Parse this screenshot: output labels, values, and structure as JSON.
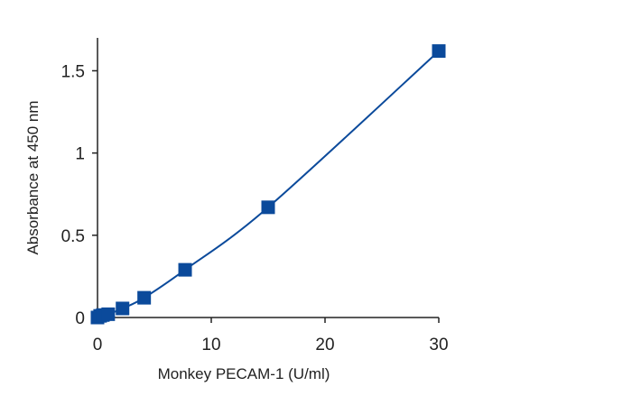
{
  "chart_data": {
    "type": "scatter",
    "title": "",
    "xlabel": "Monkey PECAM-1 (U/ml)",
    "ylabel": "Absorbance at 450 nm",
    "xlim": [
      0,
      30
    ],
    "ylim": [
      0,
      1.7
    ],
    "xticks": [
      0,
      10,
      20,
      30
    ],
    "xtick_labels": [
      "0",
      "10",
      "20",
      "30"
    ],
    "yticks": [
      0,
      0.5,
      1,
      1.5
    ],
    "ytick_labels": [
      "0",
      "0.5",
      "1",
      "1.5"
    ],
    "grid": false,
    "legend": "none",
    "color": "#0b4a9b",
    "marker": "square",
    "fit_line": "smooth curve through points",
    "series": [
      {
        "x": [
          0,
          0.23,
          0.47,
          0.94,
          2.2,
          4.1,
          7.7,
          15,
          30
        ],
        "y": [
          0.0,
          0.01,
          0.015,
          0.02,
          0.055,
          0.12,
          0.29,
          0.67,
          1.62
        ]
      }
    ]
  }
}
